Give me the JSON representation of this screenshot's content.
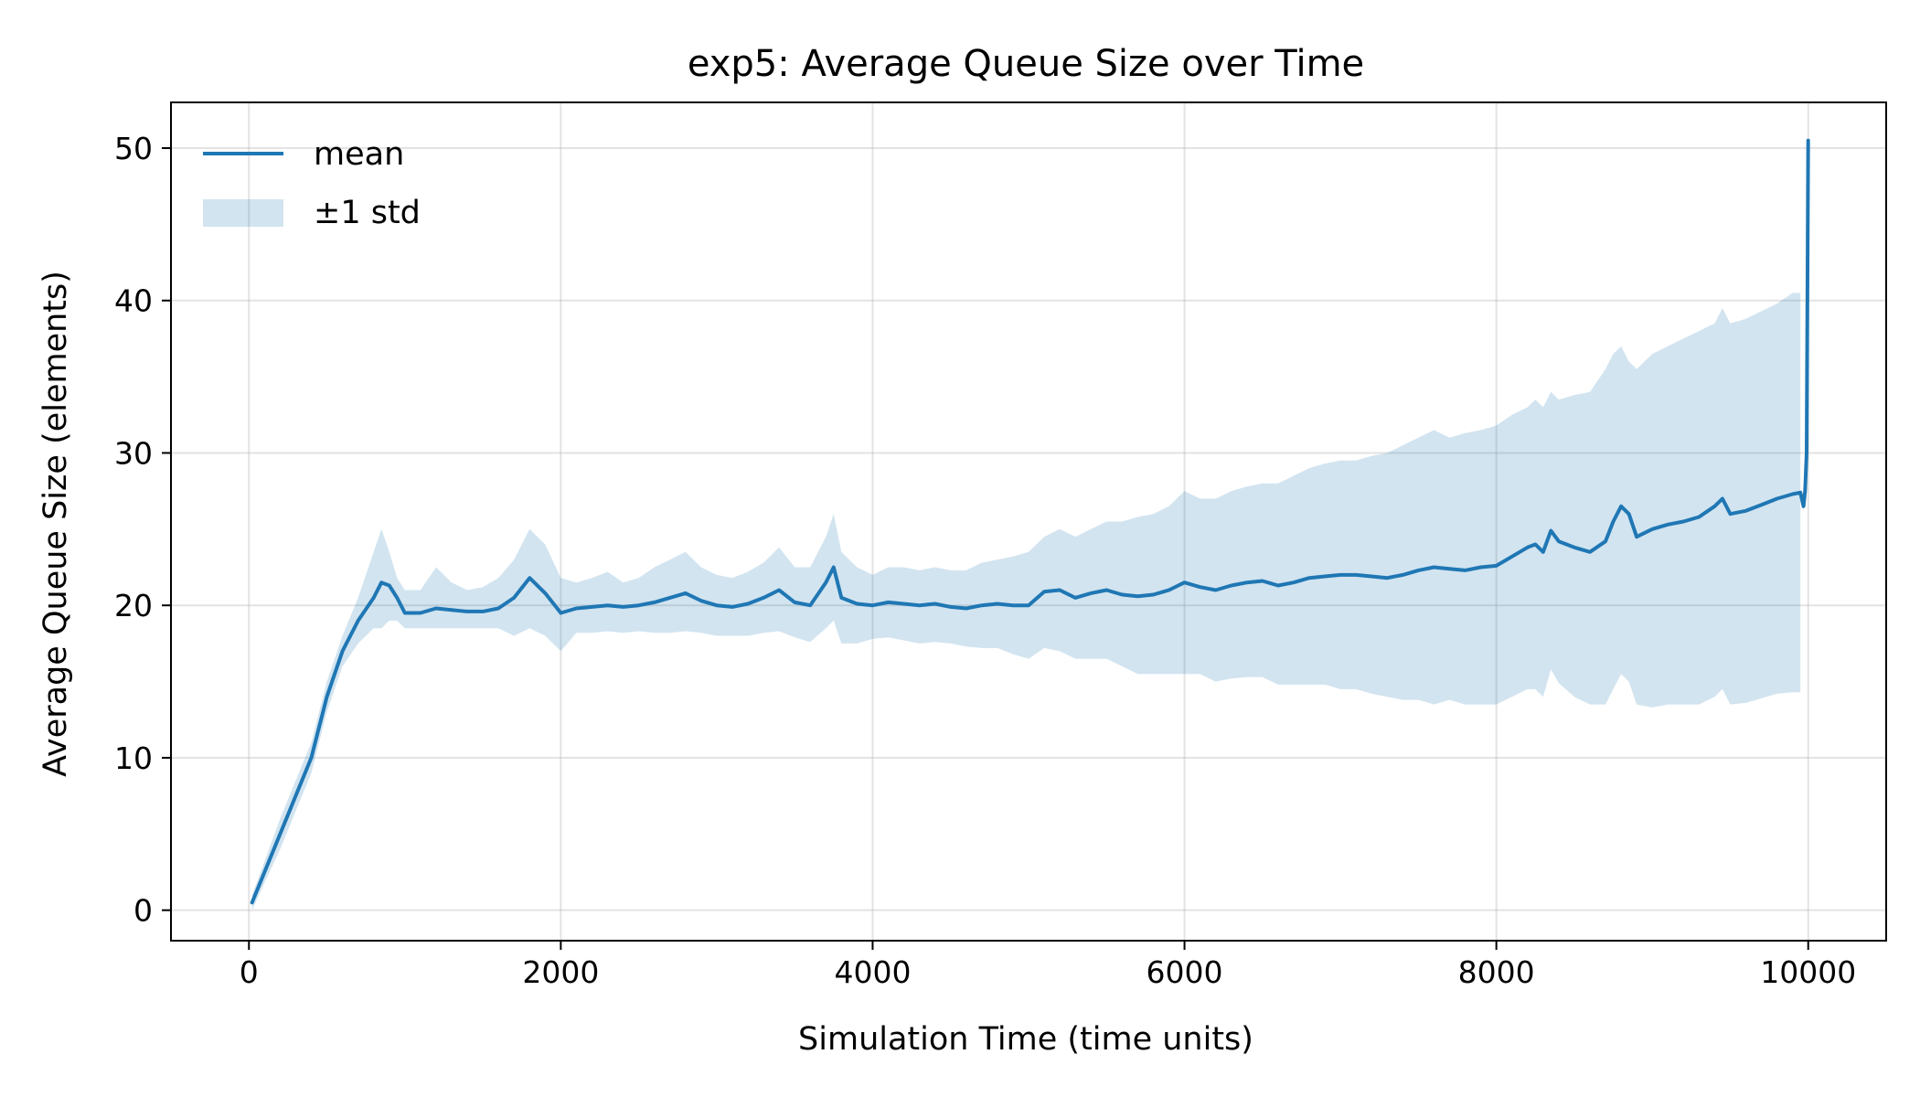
{
  "chart_data": {
    "type": "line",
    "title": "exp5: Average Queue Size over Time",
    "xlabel": "Simulation Time (time units)",
    "ylabel": "Average Queue Size (elements)",
    "xlim": [
      -500,
      10500
    ],
    "ylim": [
      -2,
      53
    ],
    "xticks": [
      0,
      2000,
      4000,
      6000,
      8000,
      10000
    ],
    "yticks": [
      0,
      10,
      20,
      30,
      40,
      50
    ],
    "grid": true,
    "legend_position": "top-left",
    "colors": {
      "line": "#1f77b4",
      "band": "#1f77b4"
    },
    "series": [
      {
        "name": "mean",
        "x": [
          20,
          100,
          200,
          300,
          400,
          500,
          600,
          700,
          800,
          850,
          900,
          950,
          1000,
          1100,
          1200,
          1300,
          1400,
          1500,
          1600,
          1700,
          1800,
          1900,
          2000,
          2100,
          2200,
          2300,
          2400,
          2500,
          2600,
          2700,
          2800,
          2900,
          3000,
          3100,
          3200,
          3300,
          3400,
          3500,
          3600,
          3700,
          3750,
          3800,
          3900,
          4000,
          4100,
          4200,
          4300,
          4400,
          4500,
          4600,
          4700,
          4800,
          4900,
          5000,
          5100,
          5200,
          5300,
          5400,
          5500,
          5600,
          5700,
          5800,
          5900,
          6000,
          6100,
          6200,
          6300,
          6400,
          6500,
          6600,
          6700,
          6800,
          6900,
          7000,
          7100,
          7200,
          7300,
          7400,
          7500,
          7600,
          7700,
          7800,
          7900,
          8000,
          8100,
          8200,
          8250,
          8300,
          8350,
          8400,
          8500,
          8600,
          8700,
          8750,
          8800,
          8850,
          8900,
          9000,
          9100,
          9200,
          9300,
          9400,
          9450,
          9500,
          9600,
          9700,
          9800,
          9900,
          9950,
          9970,
          9980,
          9990,
          10000
        ],
        "values": [
          0.5,
          2.5,
          5.0,
          7.5,
          10.0,
          14.0,
          17.0,
          19.0,
          20.5,
          21.5,
          21.3,
          20.5,
          19.5,
          19.5,
          19.8,
          19.7,
          19.6,
          19.6,
          19.8,
          20.5,
          21.8,
          20.8,
          19.5,
          19.8,
          19.9,
          20.0,
          19.9,
          20.0,
          20.2,
          20.5,
          20.8,
          20.3,
          20.0,
          19.9,
          20.1,
          20.5,
          21.0,
          20.2,
          20.0,
          21.5,
          22.5,
          20.5,
          20.1,
          20.0,
          20.2,
          20.1,
          20.0,
          20.1,
          19.9,
          19.8,
          20.0,
          20.1,
          20.0,
          20.0,
          20.9,
          21.0,
          20.5,
          20.8,
          21.0,
          20.7,
          20.6,
          20.7,
          21.0,
          21.5,
          21.2,
          21.0,
          21.3,
          21.5,
          21.6,
          21.3,
          21.5,
          21.8,
          21.9,
          22.0,
          22.0,
          21.9,
          21.8,
          22.0,
          22.3,
          22.5,
          22.4,
          22.3,
          22.5,
          22.6,
          23.2,
          23.8,
          24.0,
          23.5,
          24.9,
          24.2,
          23.8,
          23.5,
          24.2,
          25.5,
          26.5,
          26.0,
          24.5,
          25.0,
          25.3,
          25.5,
          25.8,
          26.5,
          27.0,
          26.0,
          26.2,
          26.6,
          27.0,
          27.3,
          27.4,
          26.5,
          27.5,
          30.0,
          50.5
        ]
      },
      {
        "name": "±1 std",
        "x": [
          20,
          100,
          200,
          300,
          400,
          500,
          600,
          700,
          800,
          850,
          900,
          950,
          1000,
          1100,
          1200,
          1300,
          1400,
          1500,
          1600,
          1700,
          1800,
          1900,
          2000,
          2100,
          2200,
          2300,
          2400,
          2500,
          2600,
          2700,
          2800,
          2900,
          3000,
          3100,
          3200,
          3300,
          3400,
          3500,
          3600,
          3700,
          3750,
          3800,
          3900,
          4000,
          4100,
          4200,
          4300,
          4400,
          4500,
          4600,
          4700,
          4800,
          4900,
          5000,
          5100,
          5200,
          5300,
          5400,
          5500,
          5600,
          5700,
          5800,
          5900,
          6000,
          6100,
          6200,
          6300,
          6400,
          6500,
          6600,
          6700,
          6800,
          6900,
          7000,
          7100,
          7200,
          7300,
          7400,
          7500,
          7600,
          7700,
          7800,
          7900,
          8000,
          8100,
          8200,
          8250,
          8300,
          8350,
          8400,
          8500,
          8600,
          8700,
          8750,
          8800,
          8850,
          8900,
          9000,
          9100,
          9200,
          9300,
          9400,
          9450,
          9500,
          9600,
          9700,
          9800,
          9900,
          9950
        ],
        "upper": [
          1.0,
          3.2,
          6.0,
          8.5,
          11.0,
          15.0,
          18.0,
          20.5,
          23.5,
          25.0,
          23.5,
          21.8,
          21.0,
          21.0,
          22.5,
          21.5,
          21.0,
          21.2,
          21.8,
          23.0,
          25.0,
          24.0,
          21.8,
          21.5,
          21.8,
          22.2,
          21.5,
          21.8,
          22.5,
          23.0,
          23.5,
          22.5,
          22.0,
          21.8,
          22.2,
          22.8,
          23.8,
          22.5,
          22.5,
          24.5,
          26.0,
          23.5,
          22.5,
          22.0,
          22.5,
          22.5,
          22.3,
          22.5,
          22.3,
          22.3,
          22.8,
          23.0,
          23.2,
          23.5,
          24.5,
          25.0,
          24.5,
          25.0,
          25.5,
          25.5,
          25.8,
          26.0,
          26.5,
          27.5,
          27.0,
          27.0,
          27.5,
          27.8,
          28.0,
          28.0,
          28.5,
          29.0,
          29.3,
          29.5,
          29.5,
          29.8,
          30.0,
          30.5,
          31.0,
          31.5,
          31.0,
          31.3,
          31.5,
          31.8,
          32.5,
          33.0,
          33.5,
          33.0,
          34.0,
          33.5,
          33.8,
          34.0,
          35.5,
          36.5,
          37.0,
          36.0,
          35.5,
          36.5,
          37.0,
          37.5,
          38.0,
          38.5,
          39.5,
          38.5,
          38.8,
          39.3,
          39.8,
          40.5,
          40.5
        ],
        "lower": [
          0.0,
          1.8,
          4.0,
          6.5,
          9.0,
          13.0,
          16.0,
          17.5,
          18.5,
          18.5,
          19.0,
          19.0,
          18.5,
          18.5,
          18.5,
          18.5,
          18.5,
          18.5,
          18.5,
          18.0,
          18.5,
          18.0,
          17.0,
          18.2,
          18.2,
          18.3,
          18.2,
          18.3,
          18.2,
          18.2,
          18.3,
          18.2,
          18.0,
          18.0,
          18.0,
          18.2,
          18.3,
          17.9,
          17.6,
          18.5,
          19.0,
          17.5,
          17.5,
          17.8,
          17.9,
          17.7,
          17.5,
          17.6,
          17.5,
          17.3,
          17.2,
          17.2,
          16.8,
          16.5,
          17.2,
          17.0,
          16.5,
          16.5,
          16.5,
          16.0,
          15.5,
          15.5,
          15.5,
          15.5,
          15.5,
          15.0,
          15.2,
          15.3,
          15.3,
          14.8,
          14.8,
          14.8,
          14.8,
          14.5,
          14.5,
          14.2,
          14.0,
          13.8,
          13.8,
          13.5,
          13.8,
          13.5,
          13.5,
          13.5,
          14.0,
          14.5,
          14.5,
          14.0,
          15.8,
          14.9,
          14.0,
          13.5,
          13.5,
          14.5,
          15.5,
          15.0,
          13.5,
          13.3,
          13.5,
          13.5,
          13.5,
          14.0,
          14.5,
          13.5,
          13.6,
          13.9,
          14.2,
          14.3,
          14.3
        ]
      }
    ]
  }
}
